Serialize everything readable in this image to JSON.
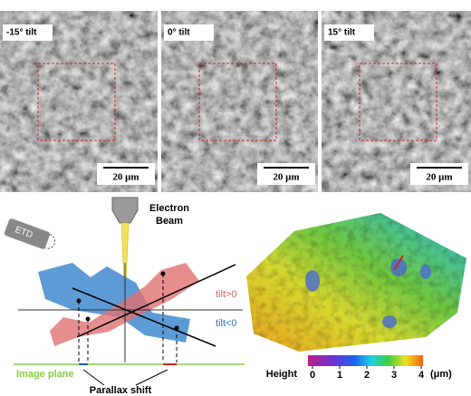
{
  "panels": [
    {
      "label": "-15° tilt",
      "scale": "20 μm"
    },
    {
      "label": "0° tilt",
      "scale": "20 μm"
    },
    {
      "label": "15° tilt",
      "scale": "20 μm"
    }
  ],
  "diagram": {
    "detector": "ETD",
    "beam": [
      "Electron",
      "Beam"
    ],
    "tilt_pos": "tilt>0",
    "tilt_neg": "tilt<0",
    "image_plane": "Image plane",
    "shift": "Parallax shift"
  },
  "colorbar": {
    "label": "Height",
    "lim": [
      0,
      4
    ],
    "ticks": [
      0,
      1,
      2,
      3,
      4
    ],
    "unit": "(μm)"
  }
}
